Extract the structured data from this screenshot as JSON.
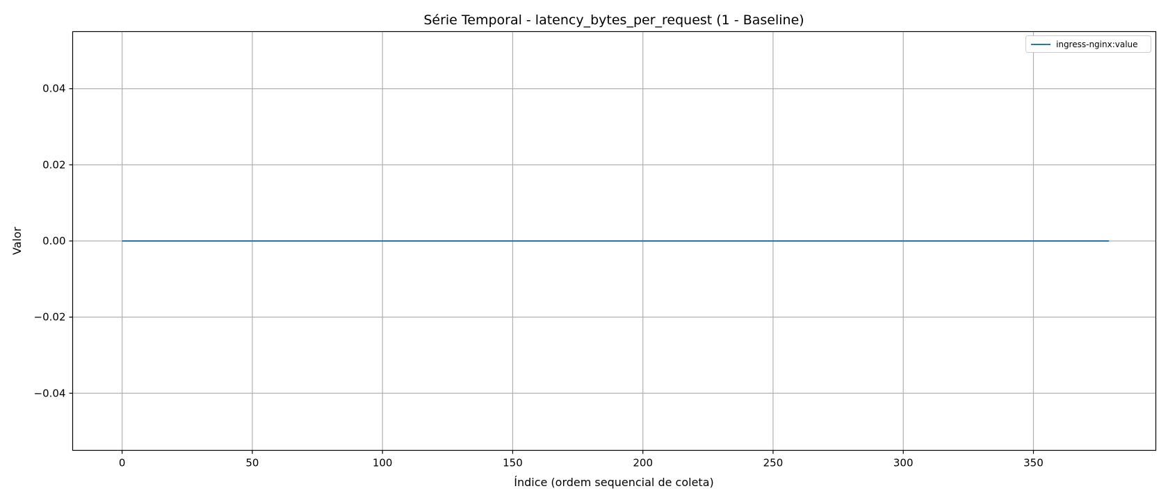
{
  "chart_data": {
    "type": "line",
    "title": "Série Temporal - latency_bytes_per_request (1 - Baseline)",
    "xlabel": "Índice (ordem sequencial de coleta)",
    "ylabel": "Valor",
    "xlim": [
      -19,
      397
    ],
    "ylim": [
      -0.055,
      0.055
    ],
    "xticks": [
      0,
      50,
      100,
      150,
      200,
      250,
      300,
      350
    ],
    "yticks": [
      -0.04,
      -0.02,
      0.0,
      0.02,
      0.04
    ],
    "xtick_labels": [
      "0",
      "50",
      "100",
      "150",
      "200",
      "250",
      "300",
      "350"
    ],
    "ytick_labels": [
      "−0.04",
      "−0.02",
      "0.00",
      "0.02",
      "0.04"
    ],
    "grid": true,
    "legend_position": "top-right",
    "series": [
      {
        "name": "ingress-nginx:value",
        "color": "#1f77b4",
        "x": [
          0,
          379
        ],
        "y": [
          0,
          0
        ]
      }
    ]
  }
}
